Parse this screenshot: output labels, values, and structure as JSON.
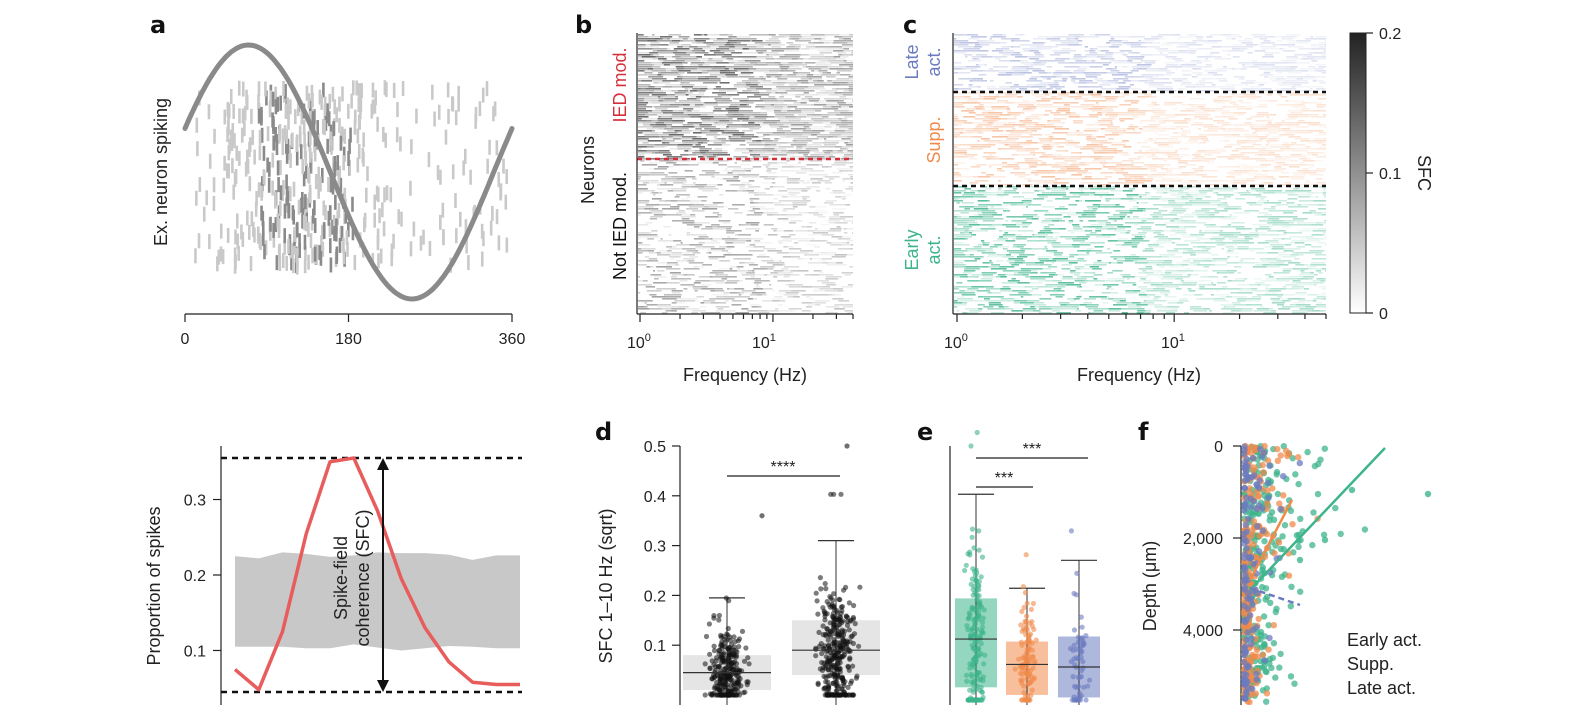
{
  "panels": {
    "a": "a",
    "b": "b",
    "c": "c",
    "d": "d",
    "e": "e",
    "f": "f"
  },
  "colors": {
    "early": "#3db48b",
    "supp": "#f08a4b",
    "late": "#6b7bbf",
    "ied": "#d62f3b",
    "gray": "#888888",
    "curve": "#e85c5c"
  },
  "chart_data": [
    {
      "id": "a_top",
      "type": "scatter",
      "ylabel": "Ex. neuron spiking",
      "xticks": [
        0,
        180,
        360
      ],
      "xlim": [
        0,
        360
      ]
    },
    {
      "id": "a_bottom",
      "type": "line",
      "ylabel": "Proportion of spikes",
      "yticks": [
        0.1,
        0.2,
        0.3
      ],
      "ylim": [
        0.045,
        0.355
      ],
      "annotation": "Spike-field coherence (SFC)",
      "annotation_lines": [
        "Spike-field",
        "coherence (SFC)"
      ],
      "series": [
        {
          "x": [
            0,
            1,
            2,
            3,
            4,
            5,
            6,
            7,
            8,
            9,
            10,
            11,
            12
          ],
          "values": [
            0.075,
            0.048,
            0.125,
            0.255,
            0.35,
            0.355,
            0.285,
            0.195,
            0.13,
            0.085,
            0.058,
            0.055,
            0.055
          ]
        }
      ],
      "band_low": [
        0.105,
        0.105,
        0.105,
        0.103,
        0.103,
        0.108,
        0.104,
        0.1,
        0.103,
        0.106,
        0.105,
        0.103,
        0.103
      ],
      "band_high": [
        0.225,
        0.222,
        0.23,
        0.228,
        0.224,
        0.226,
        0.23,
        0.229,
        0.229,
        0.227,
        0.22,
        0.226,
        0.226
      ]
    },
    {
      "id": "b",
      "type": "heatmap",
      "ylabel": "Neurons",
      "xlabel": "Frequency (Hz)",
      "xticks": [
        "10^0",
        "10^1"
      ],
      "groups": [
        "IED mod.",
        "Not IED mod."
      ]
    },
    {
      "id": "c",
      "type": "heatmap",
      "xlabel": "Frequency (Hz)",
      "xticks": [
        "10^0",
        "10^1"
      ],
      "groups": [
        {
          "label": "Late act.",
          "lines": [
            "Late",
            "act."
          ],
          "color": "#6b7bbf"
        },
        {
          "label": "Supp.",
          "lines": [
            "Supp."
          ],
          "color": "#f08a4b"
        },
        {
          "label": "Early act.",
          "lines": [
            "Early",
            "act."
          ],
          "color": "#3db48b"
        }
      ],
      "colorbar": {
        "label": "SFC",
        "ticks": [
          0.2,
          0.1,
          0
        ],
        "range": [
          0,
          0.2
        ]
      }
    },
    {
      "id": "d",
      "type": "box",
      "ylabel": "SFC 1–10 Hz (sqrt)",
      "yticks": [
        0.1,
        0.2,
        0.3,
        0.4,
        0.5
      ],
      "ylim": [
        0,
        0.5
      ],
      "significance": "****",
      "boxes": [
        {
          "q1": 0.01,
          "median": 0.045,
          "q3": 0.08,
          "whisker_high": 0.195
        },
        {
          "q1": 0.04,
          "median": 0.09,
          "q3": 0.15,
          "whisker_high": 0.31
        }
      ]
    },
    {
      "id": "e",
      "type": "box",
      "significance": [
        "***",
        "***"
      ],
      "boxes": [
        {
          "group": "early",
          "q1": 0.025,
          "median": 0.12,
          "q3": 0.2,
          "whisker_high": 0.405
        },
        {
          "group": "supp",
          "q1": 0.01,
          "median": 0.07,
          "q3": 0.115,
          "whisker_high": 0.22
        },
        {
          "group": "late",
          "q1": 0.005,
          "median": 0.065,
          "q3": 0.125,
          "whisker_high": 0.275
        }
      ]
    },
    {
      "id": "f",
      "type": "scatter",
      "ylabel": "Depth (μm)",
      "yticks": [
        "0",
        "2,000",
        "4,000"
      ],
      "ylim": [
        0,
        5500
      ],
      "legend": [
        "Early act.",
        "Supp.",
        "Late act."
      ]
    }
  ]
}
